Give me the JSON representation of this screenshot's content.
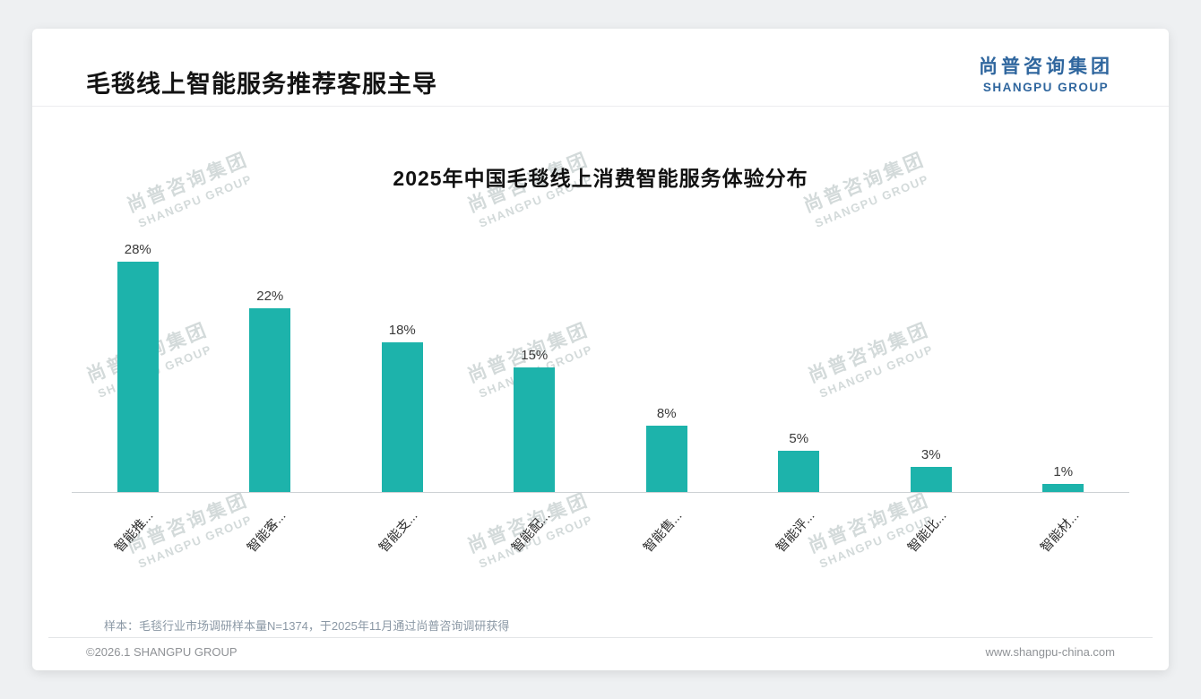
{
  "page": {
    "title": "毛毯线上智能服务推荐客服主导",
    "logo": {
      "cn": "尚普咨询集团",
      "en": "SHANGPU GROUP",
      "color": "#2f669e"
    },
    "watermark": {
      "cn": "尚普咨询集团",
      "en": "SHANGPU GROUP"
    },
    "note": "样本：毛毯行业市场调研样本量N=1374，于2025年11月通过尚普咨询调研获得",
    "footer": {
      "left": "©2026.1 SHANGPU GROUP",
      "right": "www.shangpu-china.com"
    }
  },
  "chart_data": {
    "type": "bar",
    "title": "2025年中国毛毯线上消费智能服务体验分布",
    "categories": [
      "智能推...",
      "智能客...",
      "智能支...",
      "智能配...",
      "智能售...",
      "智能评...",
      "智能比...",
      "智能材..."
    ],
    "values": [
      28,
      22,
      18,
      15,
      8,
      5,
      3,
      1
    ],
    "value_labels": [
      "28%",
      "22%",
      "18%",
      "15%",
      "8%",
      "5%",
      "3%",
      "1%"
    ],
    "unit": "%",
    "bar_color": "#1db3ab",
    "ylim": [
      0,
      30
    ],
    "grid": false,
    "legend": false,
    "xlabel": "",
    "ylabel": ""
  }
}
